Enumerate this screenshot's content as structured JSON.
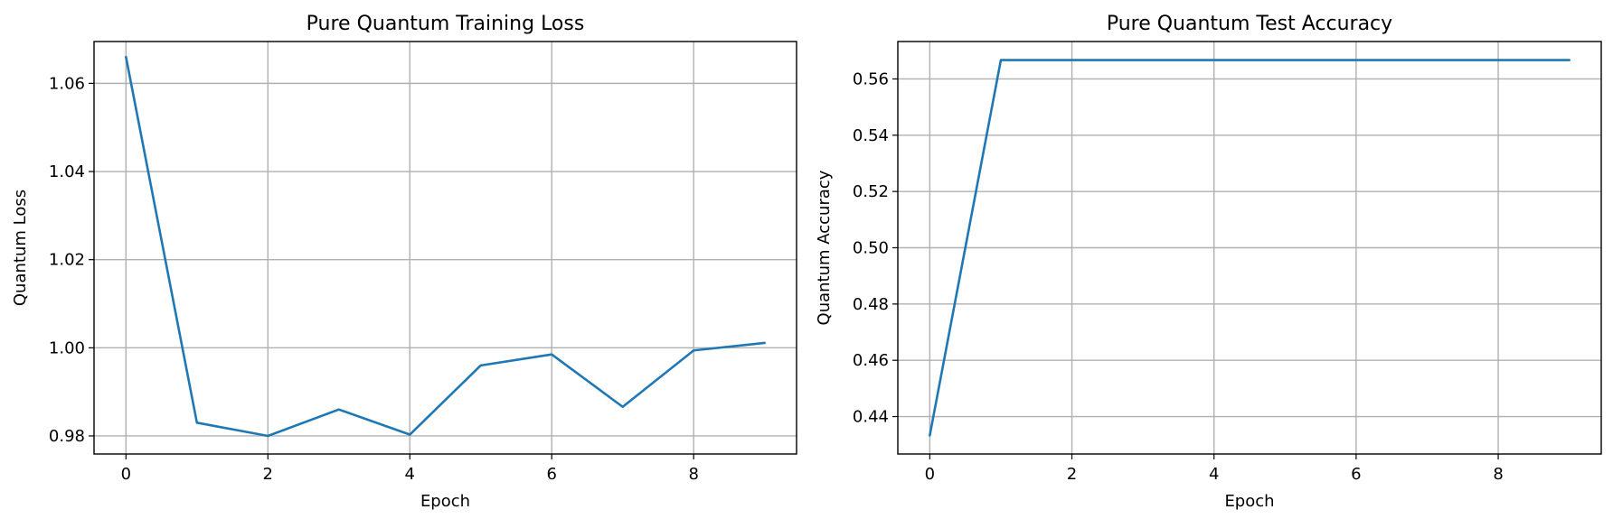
{
  "chart_data": [
    {
      "type": "line",
      "title": "Pure Quantum Training Loss",
      "xlabel": "Epoch",
      "ylabel": "Quantum Loss",
      "x": [
        0,
        1,
        2,
        3,
        4,
        5,
        6,
        7,
        8,
        9
      ],
      "series": [
        {
          "values": [
            1.066,
            0.983,
            0.98,
            0.986,
            0.9803,
            0.996,
            0.9985,
            0.9866,
            0.9994,
            1.0011
          ],
          "color": "#1f77b4"
        }
      ],
      "xlim": [
        -0.45,
        9.45
      ],
      "ylim": [
        0.9759,
        1.0695
      ],
      "xticks": [
        0,
        2,
        4,
        6,
        8
      ],
      "xtick_labels": [
        "0",
        "2",
        "4",
        "6",
        "8"
      ],
      "yticks": [
        0.98,
        1.0,
        1.02,
        1.04,
        1.06
      ],
      "ytick_labels": [
        "0.98",
        "1.00",
        "1.02",
        "1.04",
        "1.06"
      ],
      "grid": true
    },
    {
      "type": "line",
      "title": "Pure Quantum Test Accuracy",
      "xlabel": "Epoch",
      "ylabel": "Quantum Accuracy",
      "x": [
        0,
        1,
        2,
        3,
        4,
        5,
        6,
        7,
        8,
        9
      ],
      "series": [
        {
          "values": [
            0.4333,
            0.5667,
            0.5667,
            0.5667,
            0.5667,
            0.5667,
            0.5667,
            0.5667,
            0.5667,
            0.5667
          ],
          "color": "#1f77b4"
        }
      ],
      "xlim": [
        -0.45,
        9.45
      ],
      "ylim": [
        0.4267,
        0.5733
      ],
      "xticks": [
        0,
        2,
        4,
        6,
        8
      ],
      "xtick_labels": [
        "0",
        "2",
        "4",
        "6",
        "8"
      ],
      "yticks": [
        0.44,
        0.46,
        0.48,
        0.5,
        0.52,
        0.54,
        0.56
      ],
      "ytick_labels": [
        "0.44",
        "0.46",
        "0.48",
        "0.50",
        "0.52",
        "0.54",
        "0.56"
      ],
      "grid": true
    }
  ]
}
